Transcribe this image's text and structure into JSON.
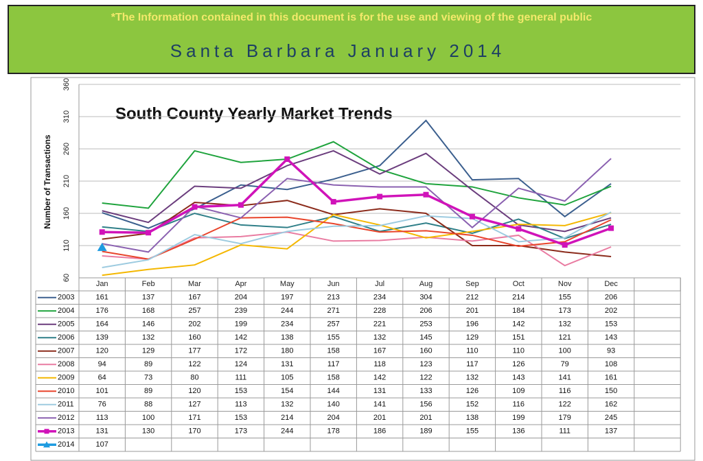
{
  "header": {
    "notice": "*The Information contained in this document is for the use and viewing of the general public",
    "title": "Santa Barbara January 2014"
  },
  "chart_data": {
    "type": "line",
    "title": "South County Yearly Market Trends",
    "y_label": "Number of Transactions",
    "categories": [
      "Jan",
      "Feb",
      "Mar",
      "Apr",
      "May",
      "Jun",
      "Jul",
      "Aug",
      "Sep",
      "Oct",
      "Nov",
      "Dec"
    ],
    "ylim": [
      60,
      360
    ],
    "yticks": [
      60,
      110,
      160,
      210,
      260,
      310,
      360
    ],
    "grid": true,
    "series": [
      {
        "name": "2003",
        "color": "#3b5f8e",
        "values": [
          161,
          137,
          167,
          204,
          197,
          213,
          234,
          304,
          212,
          214,
          155,
          206
        ]
      },
      {
        "name": "2004",
        "color": "#1ea33c",
        "values": [
          176,
          168,
          257,
          239,
          244,
          271,
          228,
          206,
          201,
          184,
          173,
          202
        ]
      },
      {
        "name": "2005",
        "color": "#6b3d7d",
        "values": [
          164,
          146,
          202,
          199,
          234,
          257,
          221,
          253,
          196,
          142,
          132,
          153
        ]
      },
      {
        "name": "2006",
        "color": "#2f7f88",
        "values": [
          139,
          132,
          160,
          142,
          138,
          155,
          132,
          145,
          129,
          151,
          121,
          143
        ]
      },
      {
        "name": "2007",
        "color": "#8b2b1b",
        "values": [
          120,
          129,
          177,
          172,
          180,
          158,
          167,
          160,
          110,
          110,
          100,
          93
        ]
      },
      {
        "name": "2008",
        "color": "#e97ba1",
        "values": [
          94,
          89,
          122,
          124,
          131,
          117,
          118,
          123,
          117,
          126,
          79,
          108
        ]
      },
      {
        "name": "2009",
        "color": "#f4b700",
        "values": [
          64,
          73,
          80,
          111,
          105,
          158,
          142,
          122,
          132,
          143,
          141,
          161
        ]
      },
      {
        "name": "2010",
        "color": "#e8442b",
        "values": [
          101,
          89,
          120,
          153,
          154,
          144,
          131,
          133,
          126,
          109,
          116,
          150
        ]
      },
      {
        "name": "2011",
        "color": "#9dcbe0",
        "values": [
          76,
          88,
          127,
          113,
          132,
          140,
          141,
          156,
          152,
          116,
          122,
          162
        ]
      },
      {
        "name": "2012",
        "color": "#8a60b0",
        "values": [
          113,
          100,
          171,
          153,
          214,
          204,
          201,
          201,
          138,
          199,
          179,
          245
        ]
      },
      {
        "name": "2013",
        "color": "#d013b9",
        "marker": "square",
        "values": [
          131,
          130,
          170,
          173,
          244,
          178,
          186,
          189,
          155,
          136,
          111,
          137
        ]
      },
      {
        "name": "2014",
        "color": "#1e9be0",
        "marker": "triangle",
        "values": [
          107,
          null,
          null,
          null,
          null,
          null,
          null,
          null,
          null,
          null,
          null,
          null
        ]
      }
    ]
  }
}
